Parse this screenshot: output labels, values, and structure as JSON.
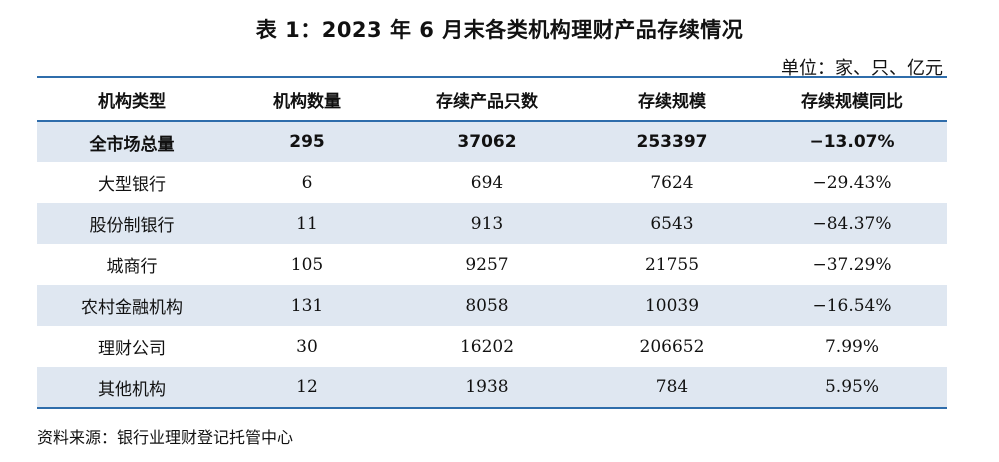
{
  "title": "表 1：2023 年 6 月末各类机构理财产品存续情况",
  "unit": "单位：家、只、亿元",
  "headers": [
    "机构类型",
    "机构数量",
    "存续产品只数",
    "存续规模",
    "存续规模同比"
  ],
  "rows": [
    [
      "全市场总量",
      "295",
      "37062",
      "253397",
      "−13.07%"
    ],
    [
      "大型银行",
      "6",
      "694",
      "7624",
      "−29.43%"
    ],
    [
      "股份制银行",
      "11",
      "913",
      "6543",
      "−84.37%"
    ],
    [
      "城商行",
      "105",
      "9257",
      "21755",
      "−37.29%"
    ],
    [
      "农村金融机构",
      "131",
      "8058",
      "10039",
      "−16.54%"
    ],
    [
      "理财公司",
      "30",
      "16202",
      "206652",
      "7.99%"
    ],
    [
      "其他机构",
      "12",
      "1938",
      "784",
      "5.95%"
    ]
  ],
  "source": "资料来源：银行业理财登记托管中心",
  "colors": {
    "rule": "#2f6dab",
    "shade": "#dfe7f1"
  }
}
